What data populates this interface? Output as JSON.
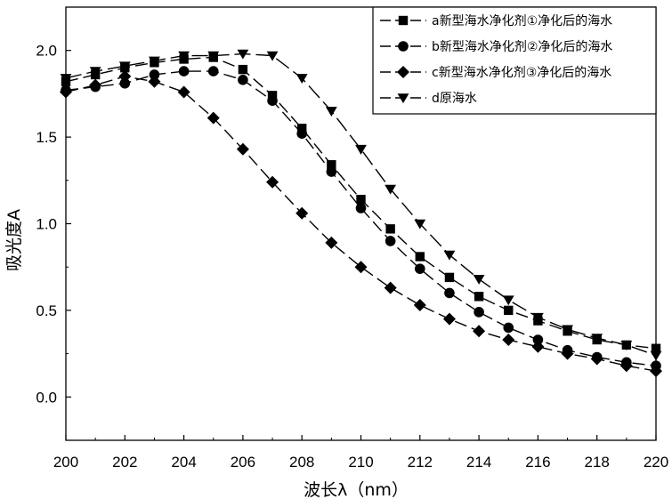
{
  "chart_data": {
    "type": "line",
    "xlabel": "波长λ（nm）",
    "ylabel": "吸光度A",
    "xlim": [
      200,
      220
    ],
    "ylim": [
      -0.25,
      2.25
    ],
    "xticks": [
      "200",
      "202",
      "204",
      "206",
      "208",
      "210",
      "212",
      "214",
      "216",
      "218",
      "220"
    ],
    "yticks": [
      "0.0",
      "0.5",
      "1.0",
      "1.5",
      "2.0"
    ],
    "legend_position": "top-right",
    "grid": false,
    "x": [
      200,
      201,
      202,
      203,
      204,
      205,
      206,
      207,
      208,
      209,
      210,
      211,
      212,
      213,
      214,
      215,
      216,
      217,
      218,
      219,
      220
    ],
    "series": [
      {
        "name": "a新型海水净化剂①净化后的海水",
        "marker": "square",
        "values": [
          1.82,
          1.86,
          1.9,
          1.93,
          1.95,
          1.96,
          1.89,
          1.74,
          1.55,
          1.34,
          1.14,
          0.97,
          0.81,
          0.69,
          0.58,
          0.5,
          0.44,
          0.38,
          0.33,
          0.3,
          0.28
        ]
      },
      {
        "name": "b新型海水净化剂②净化后的海水",
        "marker": "circle",
        "values": [
          1.77,
          1.79,
          1.81,
          1.86,
          1.88,
          1.88,
          1.83,
          1.71,
          1.52,
          1.3,
          1.09,
          0.9,
          0.74,
          0.6,
          0.49,
          0.4,
          0.33,
          0.27,
          0.23,
          0.2,
          0.18
        ]
      },
      {
        "name": "c新型海水净化剂③净化后的海水",
        "marker": "diamond",
        "values": [
          1.76,
          1.8,
          1.85,
          1.82,
          1.76,
          1.61,
          1.43,
          1.24,
          1.06,
          0.89,
          0.75,
          0.63,
          0.53,
          0.45,
          0.38,
          0.33,
          0.29,
          0.25,
          0.22,
          0.18,
          0.15
        ]
      },
      {
        "name": "d原海水",
        "marker": "triangle-down",
        "values": [
          1.84,
          1.88,
          1.91,
          1.94,
          1.97,
          1.97,
          1.98,
          1.97,
          1.84,
          1.65,
          1.43,
          1.2,
          1.0,
          0.82,
          0.68,
          0.56,
          0.46,
          0.39,
          0.34,
          0.3,
          0.24
        ]
      }
    ]
  }
}
